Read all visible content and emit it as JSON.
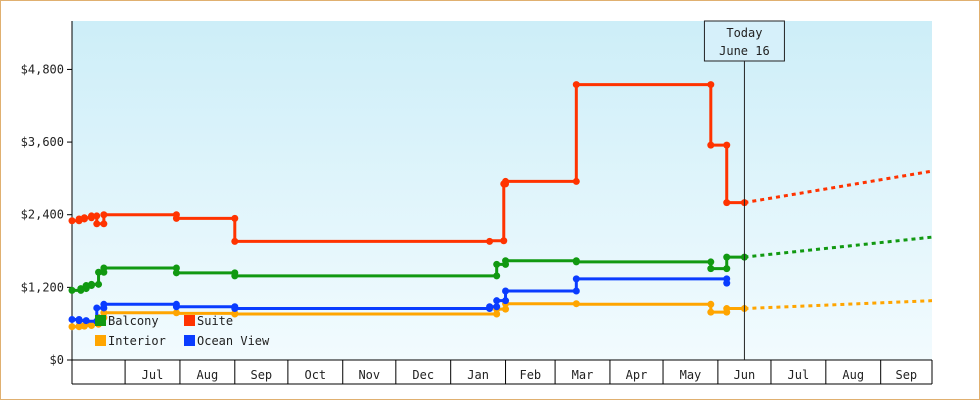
{
  "chart_data": {
    "type": "line",
    "x_start": "2016-06-01",
    "x_end": "2017-09-30",
    "x_month_labels": [
      "Jul",
      "Aug",
      "Sep",
      "Oct",
      "Nov",
      "Dec",
      "Jan",
      "Feb",
      "Mar",
      "Apr",
      "May",
      "Jun",
      "Jul",
      "Aug",
      "Sep"
    ],
    "y_ticks": [
      0,
      1200,
      2400,
      3600,
      4800
    ],
    "y_tick_labels": [
      "$0",
      "$1,200",
      "$2,400",
      "$3,600",
      "$4,800"
    ],
    "ylim": [
      0,
      5600
    ],
    "today_label": [
      "Today",
      "June 16"
    ],
    "today_date": "2017-06-16",
    "grid": false,
    "legend_position": "bottom-left",
    "series": [
      {
        "name": "Balcony",
        "color": "#119911",
        "points": [
          [
            "2016-06-01",
            1150
          ],
          [
            "2016-06-06",
            1150
          ],
          [
            "2016-06-06",
            1180
          ],
          [
            "2016-06-09",
            1180
          ],
          [
            "2016-06-09",
            1230
          ],
          [
            "2016-06-12",
            1230
          ],
          [
            "2016-06-12",
            1250
          ],
          [
            "2016-06-16",
            1250
          ],
          [
            "2016-06-16",
            1450
          ],
          [
            "2016-06-19",
            1450
          ],
          [
            "2016-06-19",
            1520
          ],
          [
            "2016-07-30",
            1520
          ],
          [
            "2016-07-30",
            1440
          ],
          [
            "2016-09-01",
            1440
          ],
          [
            "2016-09-01",
            1390
          ],
          [
            "2017-01-27",
            1390
          ],
          [
            "2017-01-27",
            1580
          ],
          [
            "2017-02-01",
            1580
          ],
          [
            "2017-02-01",
            1640
          ],
          [
            "2017-03-13",
            1640
          ],
          [
            "2017-03-13",
            1620
          ],
          [
            "2017-05-28",
            1620
          ],
          [
            "2017-05-28",
            1510
          ],
          [
            "2017-06-06",
            1510
          ],
          [
            "2017-06-06",
            1700
          ],
          [
            "2017-06-16",
            1700
          ]
        ],
        "forecast": [
          [
            "2017-06-16",
            1700
          ],
          [
            "2017-09-30",
            2030
          ]
        ]
      },
      {
        "name": "Suite",
        "color": "#ff3300",
        "points": [
          [
            "2016-06-01",
            2300
          ],
          [
            "2016-06-05",
            2300
          ],
          [
            "2016-06-05",
            2330
          ],
          [
            "2016-06-08",
            2330
          ],
          [
            "2016-06-08",
            2350
          ],
          [
            "2016-06-12",
            2350
          ],
          [
            "2016-06-12",
            2380
          ],
          [
            "2016-06-15",
            2380
          ],
          [
            "2016-06-15",
            2250
          ],
          [
            "2016-06-19",
            2250
          ],
          [
            "2016-06-19",
            2400
          ],
          [
            "2016-07-30",
            2400
          ],
          [
            "2016-07-30",
            2340
          ],
          [
            "2016-09-01",
            2340
          ],
          [
            "2016-09-01",
            1960
          ],
          [
            "2017-01-23",
            1960
          ],
          [
            "2017-01-23",
            1970
          ],
          [
            "2017-01-31",
            1970
          ],
          [
            "2017-01-31",
            2910
          ],
          [
            "2017-02-01",
            2910
          ],
          [
            "2017-02-01",
            2950
          ],
          [
            "2017-03-13",
            2950
          ],
          [
            "2017-03-13",
            4550
          ],
          [
            "2017-05-28",
            4550
          ],
          [
            "2017-05-28",
            3550
          ],
          [
            "2017-06-06",
            3550
          ],
          [
            "2017-06-06",
            2600
          ],
          [
            "2017-06-16",
            2600
          ]
        ],
        "forecast": [
          [
            "2017-06-16",
            2600
          ],
          [
            "2017-09-30",
            3120
          ]
        ]
      },
      {
        "name": "Interior",
        "color": "#ffa500",
        "points": [
          [
            "2016-06-01",
            550
          ],
          [
            "2016-06-05",
            550
          ],
          [
            "2016-06-05",
            560
          ],
          [
            "2016-06-08",
            560
          ],
          [
            "2016-06-08",
            570
          ],
          [
            "2016-06-12",
            570
          ],
          [
            "2016-06-12",
            590
          ],
          [
            "2016-06-16",
            590
          ],
          [
            "2016-06-16",
            700
          ],
          [
            "2016-06-19",
            700
          ],
          [
            "2016-06-19",
            780
          ],
          [
            "2016-07-30",
            780
          ],
          [
            "2016-07-30",
            770
          ],
          [
            "2016-09-01",
            770
          ],
          [
            "2016-09-01",
            760
          ],
          [
            "2017-01-27",
            760
          ],
          [
            "2017-01-27",
            840
          ],
          [
            "2017-02-01",
            840
          ],
          [
            "2017-02-01",
            930
          ],
          [
            "2017-03-13",
            930
          ],
          [
            "2017-03-13",
            920
          ],
          [
            "2017-05-28",
            920
          ],
          [
            "2017-05-28",
            790
          ],
          [
            "2017-06-06",
            790
          ],
          [
            "2017-06-06",
            850
          ],
          [
            "2017-06-16",
            850
          ]
        ],
        "forecast": [
          [
            "2017-06-16",
            850
          ],
          [
            "2017-09-30",
            980
          ]
        ]
      },
      {
        "name": "Ocean View",
        "color": "#0a3cff",
        "points": [
          [
            "2016-06-01",
            670
          ],
          [
            "2016-06-05",
            670
          ],
          [
            "2016-06-05",
            650
          ],
          [
            "2016-06-09",
            650
          ],
          [
            "2016-06-09",
            640
          ],
          [
            "2016-06-15",
            640
          ],
          [
            "2016-06-15",
            860
          ],
          [
            "2016-06-19",
            860
          ],
          [
            "2016-06-19",
            920
          ],
          [
            "2016-07-30",
            920
          ],
          [
            "2016-07-30",
            880
          ],
          [
            "2016-09-01",
            880
          ],
          [
            "2016-09-01",
            850
          ],
          [
            "2017-01-23",
            850
          ],
          [
            "2017-01-23",
            880
          ],
          [
            "2017-01-27",
            880
          ],
          [
            "2017-01-27",
            980
          ],
          [
            "2017-02-01",
            980
          ],
          [
            "2017-02-01",
            1140
          ],
          [
            "2017-03-13",
            1140
          ],
          [
            "2017-03-13",
            1340
          ],
          [
            "2017-06-06",
            1340
          ],
          [
            "2017-06-06",
            1270
          ],
          [
            "2017-06-06",
            1270
          ]
        ],
        "forecast": []
      }
    ]
  }
}
